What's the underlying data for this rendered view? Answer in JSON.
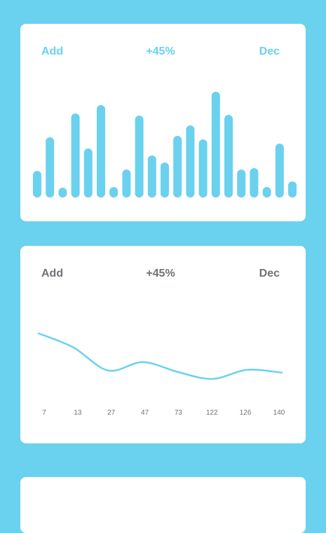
{
  "colors": {
    "accent": "#6ad1ef",
    "muted": "#6f7377",
    "card": "#ffffff",
    "background": "#6ad1ef"
  },
  "cards": [
    {
      "left_label": "Add",
      "center_label": "+45%",
      "right_label": "Dec"
    },
    {
      "left_label": "Add",
      "center_label": "+45%",
      "right_label": "Dec"
    }
  ],
  "chart_data": [
    {
      "type": "bar",
      "values": [
        38,
        86,
        14,
        120,
        70,
        132,
        15,
        40,
        117,
        60,
        50,
        88,
        103,
        83,
        151,
        118,
        40,
        42,
        15,
        77,
        23
      ],
      "ylim": [
        0,
        160
      ],
      "grid": false
    },
    {
      "type": "line",
      "categories": [
        "7",
        "13",
        "27",
        "47",
        "73",
        "122",
        "126",
        "140"
      ],
      "values": [
        95,
        75,
        42,
        54,
        40,
        30,
        43,
        39
      ],
      "ylim": [
        0,
        140
      ],
      "grid": false
    }
  ]
}
